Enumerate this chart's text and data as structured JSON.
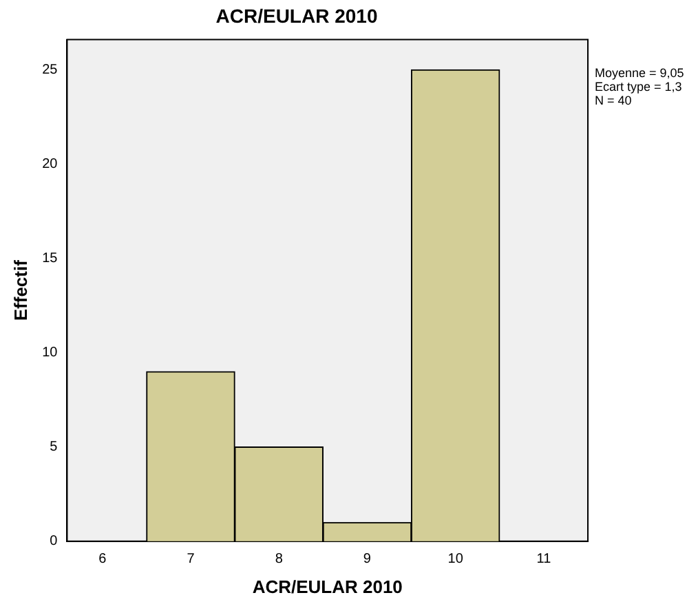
{
  "chart_data": {
    "type": "histogram",
    "title": "ACR/EULAR 2010",
    "xlabel": "ACR/EULAR 2010",
    "ylabel": "Effectif",
    "bins": [
      6.5,
      7.5,
      8.5,
      9.5,
      10.5
    ],
    "values": [
      9,
      5,
      1,
      25
    ],
    "color": "#d3ce97",
    "xlim": [
      5.6,
      11.5
    ],
    "xticks": [
      6,
      7,
      8,
      9,
      10,
      11
    ],
    "ylim": [
      0,
      26.6
    ],
    "yticks": [
      0,
      5,
      10,
      15,
      20,
      25
    ],
    "grid": false,
    "annotations": [
      "Moyenne = 9,05",
      "Ecart type = 1,3",
      "N = 40"
    ]
  }
}
